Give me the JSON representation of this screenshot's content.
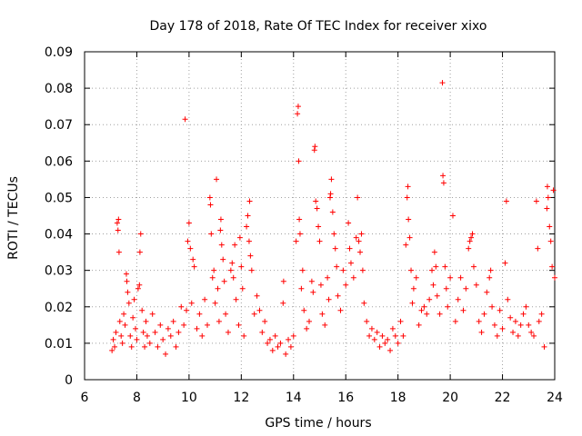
{
  "chart_data": {
    "type": "scatter",
    "title": "Day 178 of 2018, Rate Of TEC Index for receiver xixo",
    "xlabel": "GPS time / hours",
    "ylabel": "ROTI / TECUs",
    "xlim": [
      6,
      24
    ],
    "ylim": [
      0,
      0.09
    ],
    "xticks": [
      "6",
      "8",
      "10",
      "12",
      "14",
      "16",
      "18",
      "20",
      "22",
      "24"
    ],
    "yticks": [
      "0",
      "0.01",
      "0.02",
      "0.03",
      "0.04",
      "0.05",
      "0.06",
      "0.07",
      "0.08",
      "0.09"
    ],
    "grid": true,
    "marker": "+",
    "color": "#ff0000",
    "series": [
      {
        "name": "ROTI",
        "points": [
          [
            7.05,
            0.008
          ],
          [
            7.1,
            0.011
          ],
          [
            7.15,
            0.009
          ],
          [
            7.2,
            0.013
          ],
          [
            7.25,
            0.043
          ],
          [
            7.28,
            0.041
          ],
          [
            7.3,
            0.044
          ],
          [
            7.32,
            0.035
          ],
          [
            7.35,
            0.016
          ],
          [
            7.4,
            0.012
          ],
          [
            7.45,
            0.01
          ],
          [
            7.5,
            0.018
          ],
          [
            7.55,
            0.015
          ],
          [
            7.6,
            0.029
          ],
          [
            7.62,
            0.027
          ],
          [
            7.65,
            0.024
          ],
          [
            7.7,
            0.021
          ],
          [
            7.75,
            0.012
          ],
          [
            7.8,
            0.009
          ],
          [
            7.85,
            0.017
          ],
          [
            7.9,
            0.022
          ],
          [
            7.95,
            0.014
          ],
          [
            8.0,
            0.011
          ],
          [
            8.05,
            0.025
          ],
          [
            8.1,
            0.026
          ],
          [
            8.12,
            0.035
          ],
          [
            8.15,
            0.04
          ],
          [
            8.2,
            0.019
          ],
          [
            8.25,
            0.013
          ],
          [
            8.3,
            0.009
          ],
          [
            8.35,
            0.016
          ],
          [
            8.4,
            0.012
          ],
          [
            8.5,
            0.01
          ],
          [
            8.6,
            0.018
          ],
          [
            8.7,
            0.013
          ],
          [
            8.8,
            0.009
          ],
          [
            8.9,
            0.015
          ],
          [
            9.0,
            0.011
          ],
          [
            9.1,
            0.007
          ],
          [
            9.2,
            0.014
          ],
          [
            9.3,
            0.012
          ],
          [
            9.4,
            0.016
          ],
          [
            9.5,
            0.009
          ],
          [
            9.6,
            0.013
          ],
          [
            9.7,
            0.02
          ],
          [
            9.8,
            0.015
          ],
          [
            9.85,
            0.0715
          ],
          [
            9.9,
            0.019
          ],
          [
            9.95,
            0.038
          ],
          [
            10.0,
            0.043
          ],
          [
            10.05,
            0.036
          ],
          [
            10.1,
            0.021
          ],
          [
            10.15,
            0.033
          ],
          [
            10.2,
            0.031
          ],
          [
            10.3,
            0.014
          ],
          [
            10.4,
            0.018
          ],
          [
            10.5,
            0.012
          ],
          [
            10.6,
            0.022
          ],
          [
            10.7,
            0.015
          ],
          [
            10.8,
            0.05
          ],
          [
            10.82,
            0.048
          ],
          [
            10.85,
            0.04
          ],
          [
            10.9,
            0.028
          ],
          [
            10.95,
            0.03
          ],
          [
            11.0,
            0.021
          ],
          [
            11.05,
            0.055
          ],
          [
            11.1,
            0.025
          ],
          [
            11.15,
            0.016
          ],
          [
            11.2,
            0.041
          ],
          [
            11.22,
            0.044
          ],
          [
            11.25,
            0.037
          ],
          [
            11.3,
            0.033
          ],
          [
            11.35,
            0.027
          ],
          [
            11.4,
            0.018
          ],
          [
            11.5,
            0.013
          ],
          [
            11.6,
            0.03
          ],
          [
            11.65,
            0.032
          ],
          [
            11.7,
            0.028
          ],
          [
            11.75,
            0.037
          ],
          [
            11.8,
            0.022
          ],
          [
            11.9,
            0.015
          ],
          [
            11.95,
            0.039
          ],
          [
            12.0,
            0.031
          ],
          [
            12.05,
            0.025
          ],
          [
            12.1,
            0.012
          ],
          [
            12.2,
            0.042
          ],
          [
            12.25,
            0.045
          ],
          [
            12.3,
            0.038
          ],
          [
            12.32,
            0.049
          ],
          [
            12.35,
            0.034
          ],
          [
            12.4,
            0.03
          ],
          [
            12.5,
            0.018
          ],
          [
            12.6,
            0.023
          ],
          [
            12.7,
            0.019
          ],
          [
            12.8,
            0.013
          ],
          [
            12.9,
            0.016
          ],
          [
            13.0,
            0.01
          ],
          [
            13.1,
            0.011
          ],
          [
            13.2,
            0.008
          ],
          [
            13.3,
            0.012
          ],
          [
            13.4,
            0.009
          ],
          [
            13.5,
            0.01
          ],
          [
            13.6,
            0.021
          ],
          [
            13.62,
            0.027
          ],
          [
            13.7,
            0.007
          ],
          [
            13.8,
            0.011
          ],
          [
            13.9,
            0.009
          ],
          [
            14.0,
            0.012
          ],
          [
            14.1,
            0.038
          ],
          [
            14.15,
            0.073
          ],
          [
            14.18,
            0.075
          ],
          [
            14.2,
            0.06
          ],
          [
            14.22,
            0.044
          ],
          [
            14.25,
            0.04
          ],
          [
            14.3,
            0.025
          ],
          [
            14.35,
            0.03
          ],
          [
            14.4,
            0.019
          ],
          [
            14.5,
            0.014
          ],
          [
            14.6,
            0.016
          ],
          [
            14.7,
            0.027
          ],
          [
            14.75,
            0.024
          ],
          [
            14.8,
            0.063
          ],
          [
            14.82,
            0.064
          ],
          [
            14.85,
            0.049
          ],
          [
            14.9,
            0.047
          ],
          [
            14.95,
            0.042
          ],
          [
            15.0,
            0.038
          ],
          [
            15.05,
            0.026
          ],
          [
            15.1,
            0.018
          ],
          [
            15.2,
            0.015
          ],
          [
            15.3,
            0.028
          ],
          [
            15.35,
            0.022
          ],
          [
            15.4,
            0.05
          ],
          [
            15.42,
            0.051
          ],
          [
            15.45,
            0.055
          ],
          [
            15.5,
            0.046
          ],
          [
            15.55,
            0.04
          ],
          [
            15.6,
            0.036
          ],
          [
            15.65,
            0.031
          ],
          [
            15.7,
            0.023
          ],
          [
            15.8,
            0.019
          ],
          [
            15.9,
            0.03
          ],
          [
            16.0,
            0.026
          ],
          [
            16.1,
            0.043
          ],
          [
            16.15,
            0.036
          ],
          [
            16.2,
            0.032
          ],
          [
            16.3,
            0.028
          ],
          [
            16.4,
            0.039
          ],
          [
            16.45,
            0.05
          ],
          [
            16.5,
            0.038
          ],
          [
            16.55,
            0.035
          ],
          [
            16.6,
            0.04
          ],
          [
            16.65,
            0.03
          ],
          [
            16.7,
            0.021
          ],
          [
            16.8,
            0.016
          ],
          [
            16.9,
            0.012
          ],
          [
            17.0,
            0.014
          ],
          [
            17.1,
            0.011
          ],
          [
            17.2,
            0.013
          ],
          [
            17.3,
            0.009
          ],
          [
            17.4,
            0.012
          ],
          [
            17.5,
            0.01
          ],
          [
            17.6,
            0.011
          ],
          [
            17.7,
            0.008
          ],
          [
            17.8,
            0.014
          ],
          [
            17.9,
            0.012
          ],
          [
            18.0,
            0.01
          ],
          [
            18.1,
            0.016
          ],
          [
            18.2,
            0.012
          ],
          [
            18.3,
            0.037
          ],
          [
            18.35,
            0.05
          ],
          [
            18.38,
            0.053
          ],
          [
            18.4,
            0.044
          ],
          [
            18.45,
            0.039
          ],
          [
            18.5,
            0.03
          ],
          [
            18.55,
            0.021
          ],
          [
            18.6,
            0.025
          ],
          [
            18.7,
            0.028
          ],
          [
            18.8,
            0.015
          ],
          [
            18.9,
            0.019
          ],
          [
            19.0,
            0.02
          ],
          [
            19.1,
            0.018
          ],
          [
            19.2,
            0.022
          ],
          [
            19.3,
            0.03
          ],
          [
            19.35,
            0.026
          ],
          [
            19.4,
            0.035
          ],
          [
            19.45,
            0.031
          ],
          [
            19.5,
            0.023
          ],
          [
            19.6,
            0.018
          ],
          [
            19.7,
            0.0815
          ],
          [
            19.72,
            0.056
          ],
          [
            19.75,
            0.054
          ],
          [
            19.8,
            0.031
          ],
          [
            19.85,
            0.025
          ],
          [
            19.9,
            0.02
          ],
          [
            20.0,
            0.028
          ],
          [
            20.1,
            0.045
          ],
          [
            20.2,
            0.016
          ],
          [
            20.3,
            0.022
          ],
          [
            20.4,
            0.028
          ],
          [
            20.5,
            0.019
          ],
          [
            20.6,
            0.025
          ],
          [
            20.7,
            0.036
          ],
          [
            20.75,
            0.038
          ],
          [
            20.8,
            0.039
          ],
          [
            20.85,
            0.04
          ],
          [
            20.9,
            0.031
          ],
          [
            21.0,
            0.026
          ],
          [
            21.1,
            0.016
          ],
          [
            21.2,
            0.013
          ],
          [
            21.3,
            0.018
          ],
          [
            21.4,
            0.024
          ],
          [
            21.5,
            0.028
          ],
          [
            21.55,
            0.03
          ],
          [
            21.6,
            0.02
          ],
          [
            21.7,
            0.015
          ],
          [
            21.8,
            0.012
          ],
          [
            21.9,
            0.019
          ],
          [
            22.0,
            0.014
          ],
          [
            22.1,
            0.032
          ],
          [
            22.15,
            0.049
          ],
          [
            22.2,
            0.022
          ],
          [
            22.3,
            0.017
          ],
          [
            22.4,
            0.013
          ],
          [
            22.5,
            0.016
          ],
          [
            22.6,
            0.012
          ],
          [
            22.7,
            0.015
          ],
          [
            22.8,
            0.018
          ],
          [
            22.9,
            0.02
          ],
          [
            23.0,
            0.015
          ],
          [
            23.1,
            0.013
          ],
          [
            23.2,
            0.012
          ],
          [
            23.3,
            0.049
          ],
          [
            23.35,
            0.036
          ],
          [
            23.4,
            0.016
          ],
          [
            23.5,
            0.018
          ],
          [
            23.6,
            0.009
          ],
          [
            23.7,
            0.047
          ],
          [
            23.72,
            0.053
          ],
          [
            23.75,
            0.05
          ],
          [
            23.8,
            0.042
          ],
          [
            23.85,
            0.038
          ],
          [
            23.9,
            0.031
          ],
          [
            23.95,
            0.052
          ],
          [
            24.0,
            0.028
          ]
        ]
      }
    ]
  }
}
